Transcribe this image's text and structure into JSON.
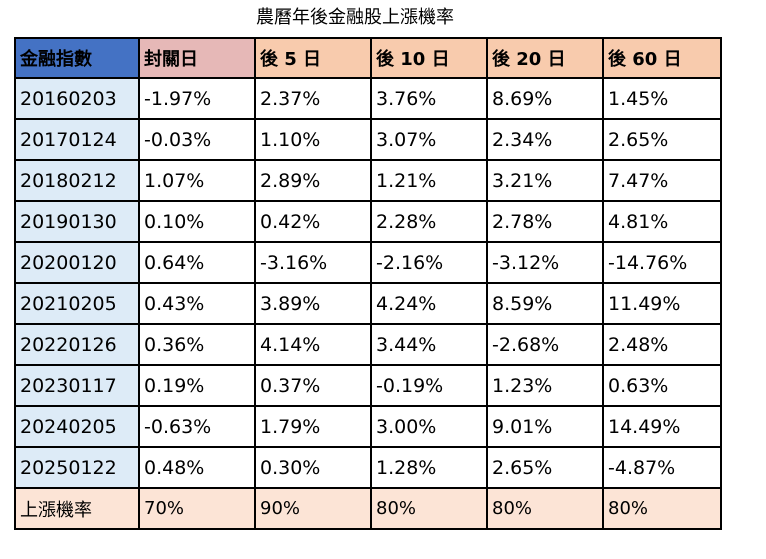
{
  "title": "農曆年後金融股上漲機率",
  "headers": [
    "金融指數",
    "封關日",
    "後 5 日",
    "後 10 日",
    "後 20 日",
    "後 60 日"
  ],
  "rows": [
    {
      "date": "20160203",
      "values": [
        "-1.97%",
        "2.37%",
        "3.76%",
        "8.69%",
        "1.45%"
      ]
    },
    {
      "date": "20170124",
      "values": [
        "-0.03%",
        "1.10%",
        "3.07%",
        "2.34%",
        "2.65%"
      ]
    },
    {
      "date": "20180212",
      "values": [
        "1.07%",
        "2.89%",
        "1.21%",
        "3.21%",
        "7.47%"
      ]
    },
    {
      "date": "20190130",
      "values": [
        "0.10%",
        "0.42%",
        "2.28%",
        "2.78%",
        "4.81%"
      ]
    },
    {
      "date": "20200120",
      "values": [
        "0.64%",
        "-3.16%",
        "-2.16%",
        "-3.12%",
        "-14.76%"
      ]
    },
    {
      "date": "20210205",
      "values": [
        "0.43%",
        "3.89%",
        "4.24%",
        "8.59%",
        "11.49%"
      ]
    },
    {
      "date": "20220126",
      "values": [
        "0.36%",
        "4.14%",
        "3.44%",
        "-2.68%",
        "2.48%"
      ]
    },
    {
      "date": "20230117",
      "values": [
        "0.19%",
        "0.37%",
        "-0.19%",
        "1.23%",
        "0.63%"
      ]
    },
    {
      "date": "20240205",
      "values": [
        "-0.63%",
        "1.79%",
        "3.00%",
        "9.01%",
        "14.49%"
      ]
    },
    {
      "date": "20250122",
      "values": [
        "0.48%",
        "0.30%",
        "1.28%",
        "2.65%",
        "-4.87%"
      ]
    }
  ],
  "footer": {
    "label": "上漲機率",
    "values": [
      "70%",
      "90%",
      "80%",
      "80%",
      "80%"
    ]
  },
  "colors": {
    "index_header": "#4472c4",
    "close_header": "#e6b8b7",
    "after_header": "#f8cbad",
    "date_column": "#ddebf7",
    "footer_row": "#fce4d6"
  }
}
